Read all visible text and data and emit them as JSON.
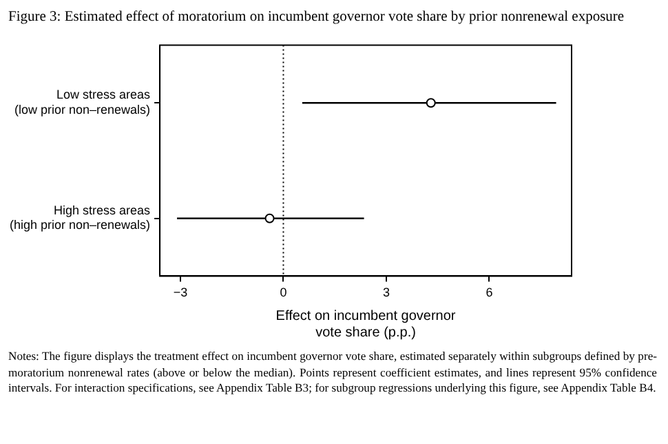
{
  "chart_data": {
    "type": "scatter",
    "orientation": "horizontal",
    "title": "Figure 3: Estimated effect of moratorium on incumbent governor vote share by prior nonrenewal exposure",
    "xlabel": "Effect on incumbent governor vote share (p.p.)",
    "categories": [
      "Low stress areas\n(low prior non–renewals)",
      "High stress areas\n(high prior non–renewals)"
    ],
    "values": [
      4.3,
      -0.4
    ],
    "errors": [
      [
        0.55,
        7.95
      ],
      [
        -3.1,
        2.35
      ]
    ],
    "color": "#000000",
    "marker": "circle",
    "xlim": [
      -3.6,
      8.4
    ],
    "xticks": [
      {
        "value": -3,
        "label": "−3"
      },
      0,
      3,
      6
    ],
    "ref_lines": [
      {
        "axis": "x",
        "value": 0,
        "line_style": "dotted",
        "color": "#000000"
      }
    ],
    "grid": false,
    "legend": false,
    "annotations": [
      "Notes: The figure displays the treatment effect on incumbent governor vote share, estimated separately within subgroups defined by pre-moratorium nonrenewal rates (above or below the median). Points represent coefficient estimates, and lines represent 95% confidence intervals. For interaction specifications, see Appendix Table B3; for subgroup regressions underlying this figure, see Appendix Table B4."
    ]
  }
}
